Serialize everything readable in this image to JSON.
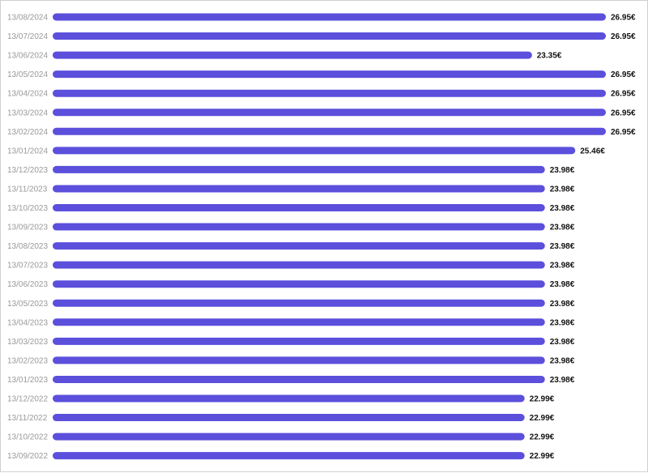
{
  "chart_data": {
    "type": "bar",
    "orientation": "horizontal",
    "categories": [
      "13/08/2024",
      "13/07/2024",
      "13/06/2024",
      "13/05/2024",
      "13/04/2024",
      "13/03/2024",
      "13/02/2024",
      "13/01/2024",
      "13/12/2023",
      "13/11/2023",
      "13/10/2023",
      "13/09/2023",
      "13/08/2023",
      "13/07/2023",
      "13/06/2023",
      "13/05/2023",
      "13/04/2023",
      "13/03/2023",
      "13/02/2023",
      "13/01/2023",
      "13/12/2022",
      "13/11/2022",
      "13/10/2022",
      "13/09/2022"
    ],
    "values": [
      26.95,
      26.95,
      23.35,
      26.95,
      26.95,
      26.95,
      26.95,
      25.46,
      23.98,
      23.98,
      23.98,
      23.98,
      23.98,
      23.98,
      23.98,
      23.98,
      23.98,
      23.98,
      23.98,
      23.98,
      22.99,
      22.99,
      22.99,
      22.99
    ],
    "value_labels": [
      "26.95€",
      "26.95€",
      "23.35€",
      "26.95€",
      "26.95€",
      "26.95€",
      "26.95€",
      "25.46€",
      "23.98€",
      "23.98€",
      "23.98€",
      "23.98€",
      "23.98€",
      "23.98€",
      "23.98€",
      "23.98€",
      "23.98€",
      "23.98€",
      "23.98€",
      "23.98€",
      "22.99€",
      "22.99€",
      "22.99€",
      "22.99€"
    ],
    "unit": "€",
    "bar_color": "#5b4fdc",
    "title": "",
    "xlabel": "",
    "ylabel": "",
    "grid": false,
    "legend": false
  }
}
